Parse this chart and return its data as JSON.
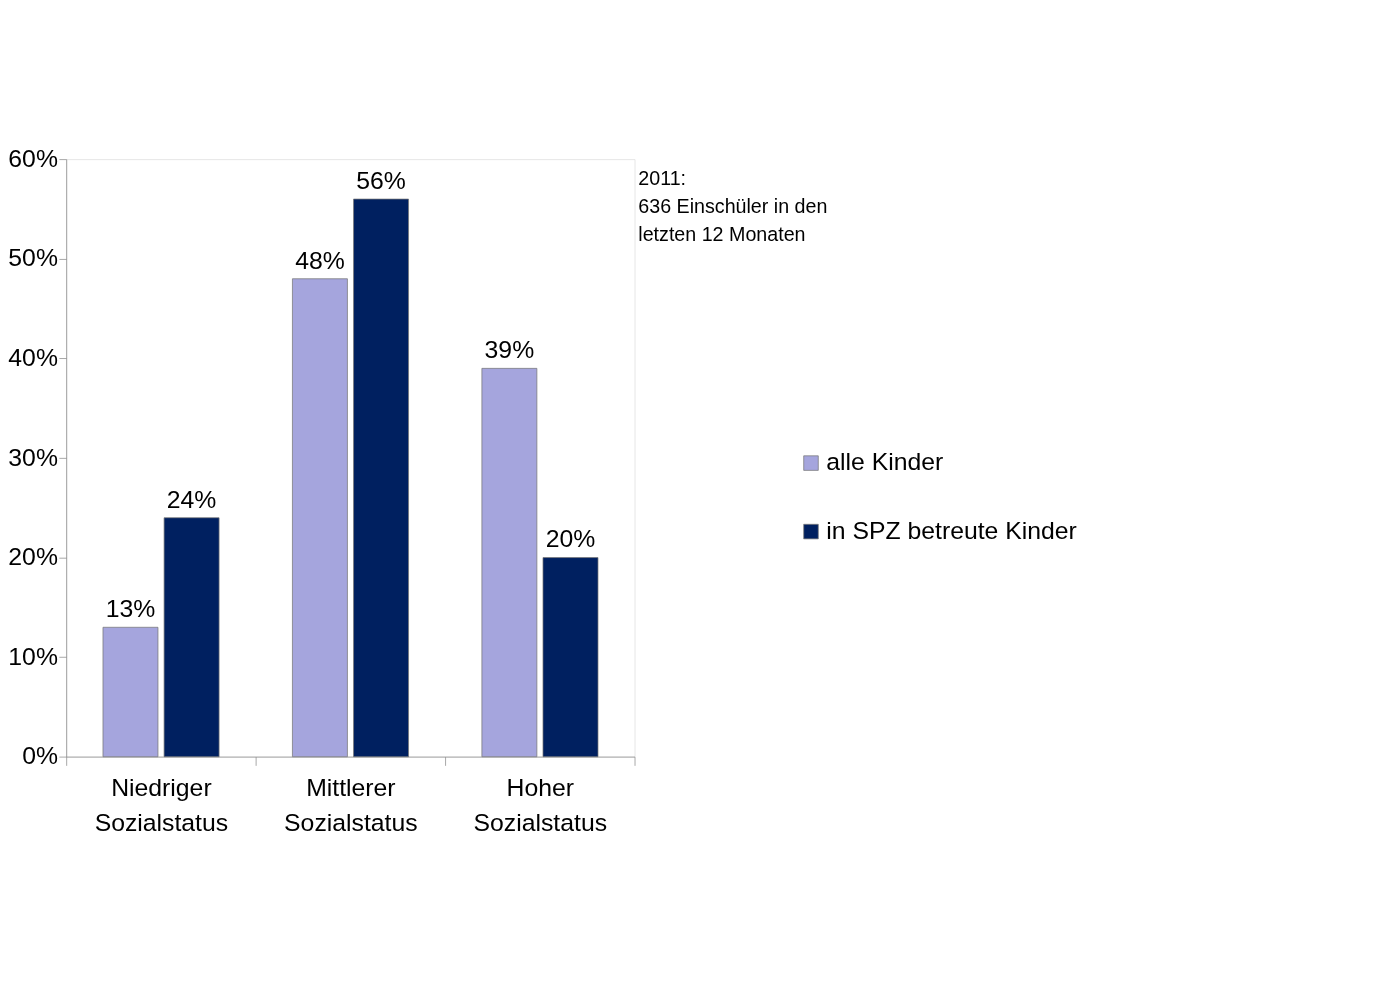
{
  "chart_data": {
    "type": "bar",
    "categories": [
      "Niedriger Sozialstatus",
      "Mittlerer Sozialstatus",
      "Hoher Sozialstatus"
    ],
    "series": [
      {
        "name": "alle Kinder",
        "color": "#a5a5dd",
        "values": [
          13,
          48,
          39
        ],
        "value_labels": [
          "13%",
          "48%",
          "39%"
        ]
      },
      {
        "name": "in SPZ betreute Kinder",
        "color": "#002060",
        "values": [
          24,
          56,
          20
        ],
        "value_labels": [
          "24%",
          "56%",
          "20%"
        ]
      }
    ],
    "ylim": [
      0,
      60
    ],
    "yticks": [
      {
        "value": 0,
        "label": "0%"
      },
      {
        "value": 10,
        "label": "10%"
      },
      {
        "value": 20,
        "label": "20%"
      },
      {
        "value": 30,
        "label": "30%"
      },
      {
        "value": 40,
        "label": "40%"
      },
      {
        "value": 50,
        "label": "50%"
      },
      {
        "value": 60,
        "label": "60%"
      }
    ],
    "annotations": [
      "2011:\n636 Einschüler in den\nletzten 12 Monaten"
    ],
    "grid": false,
    "legend": "right"
  }
}
